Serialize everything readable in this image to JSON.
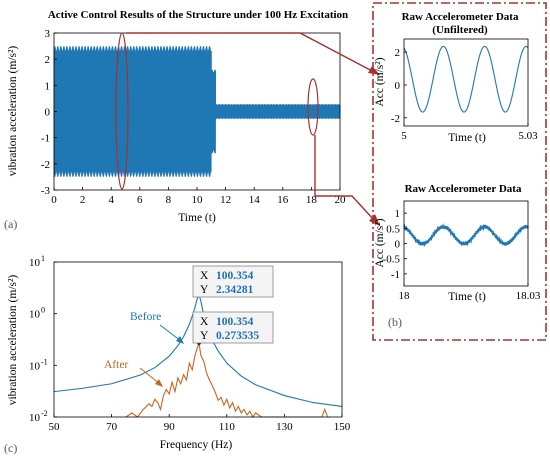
{
  "colors": {
    "before": "#1f77b4",
    "after": "#c8661f",
    "callout": "#a8322a",
    "datatip_border": "#888888"
  },
  "panel_labels": {
    "a": "(a)",
    "b": "(b)",
    "c": "(c)"
  },
  "chart_data": [
    {
      "id": "a",
      "type": "line",
      "title": "Active Control Results of the Structure under 100 Hz Excitation",
      "xlabel": "Time (t)",
      "ylabel": "vibration acceleration (m/s²)",
      "xlim": [
        0,
        20
      ],
      "ylim": [
        -3,
        3
      ],
      "xticks": [
        "0",
        "2",
        "4",
        "6",
        "8",
        "10",
        "12",
        "14",
        "16",
        "18",
        "20"
      ],
      "yticks": [
        "3",
        "2",
        "1",
        "0",
        "-1",
        "-2",
        "-3"
      ],
      "series": [
        {
          "segments": [
            {
              "t_start": 0,
              "t_end": 11,
              "amplitude": 2.5
            },
            {
              "t_start": 11,
              "t_end": 11.3,
              "amplitude": 1.6
            },
            {
              "t_start": 11.3,
              "t_end": 20,
              "amplitude": 0.28
            }
          ]
        }
      ],
      "grid": false
    },
    {
      "id": "b1",
      "type": "line",
      "title": "Raw Accelerometer Data",
      "subtitle": "(Unfiltered)",
      "xlabel": "Time (t)",
      "ylabel": "Acc (m/s²)",
      "xlim": [
        5,
        5.03
      ],
      "ylim": [
        -2.5,
        2.8
      ],
      "xticks": [
        "5",
        "5.03"
      ],
      "yticks": [
        "2",
        "0",
        "-2"
      ],
      "frequency_hz": 100,
      "amplitude": 2.0,
      "offset": 0.35,
      "grid": false
    },
    {
      "id": "b2",
      "type": "line",
      "title": "Raw Accelerometer Data",
      "xlabel": "Time (t)",
      "ylabel": "Acc (m/s²)",
      "xlim": [
        18,
        18.03
      ],
      "ylim": [
        -1.4,
        1.4
      ],
      "xticks": [
        "18",
        "18.03"
      ],
      "yticks": [
        "1",
        "0.5",
        "0",
        "-0.5",
        "-1"
      ],
      "frequency_hz": 100,
      "amplitude": 0.28,
      "offset": 0.27,
      "grid": false
    },
    {
      "id": "c",
      "type": "line",
      "xlabel": "Frequency (Hz)",
      "ylabel": "vibration acceleration (m/s²)",
      "xlim": [
        50,
        150
      ],
      "ylim": [
        0.01,
        10
      ],
      "yscale": "log",
      "xticks": [
        "50",
        "70",
        "90",
        "110",
        "130",
        "150"
      ],
      "yticks": [
        "10",
        "10",
        "10",
        "10"
      ],
      "yticks_exp": [
        "1",
        "0",
        "-1",
        "-2"
      ],
      "series": [
        {
          "name": "Before",
          "x": [
            50,
            60,
            70,
            80,
            85,
            90,
            93,
            95,
            97,
            98,
            99,
            99.6,
            100.354,
            101,
            102,
            103,
            105,
            107,
            110,
            115,
            120,
            130,
            140,
            150
          ],
          "y": [
            0.031,
            0.036,
            0.044,
            0.065,
            0.09,
            0.15,
            0.24,
            0.36,
            0.62,
            0.9,
            1.35,
            1.85,
            2.34281,
            1.75,
            0.95,
            0.6,
            0.3,
            0.19,
            0.11,
            0.062,
            0.042,
            0.026,
            0.019,
            0.016
          ]
        },
        {
          "name": "After",
          "x": [
            75,
            77,
            79,
            81,
            83,
            84,
            85,
            86,
            87,
            88,
            89,
            90,
            91,
            92,
            93,
            94,
            95,
            96,
            97,
            98,
            99,
            100.354,
            101,
            102,
            103,
            104,
            105,
            106,
            107,
            108,
            109,
            110,
            111,
            112,
            113,
            114,
            115,
            116,
            117,
            118,
            119,
            120,
            121,
            122,
            143,
            144,
            145,
            146
          ],
          "y": [
            0.01,
            0.012,
            0.01,
            0.014,
            0.018,
            0.016,
            0.022,
            0.019,
            0.014,
            0.026,
            0.034,
            0.028,
            0.047,
            0.031,
            0.057,
            0.044,
            0.066,
            0.052,
            0.11,
            0.082,
            0.16,
            0.273535,
            0.155,
            0.12,
            0.07,
            0.052,
            0.04,
            0.03,
            0.021,
            0.024,
            0.017,
            0.022,
            0.015,
            0.019,
            0.013,
            0.016,
            0.012,
            0.014,
            0.011,
            0.013,
            0.01,
            0.012,
            0.011,
            0.01,
            0.01,
            0.014,
            0.01,
            0.01
          ]
        }
      ],
      "annotations": [
        {
          "series": "Before",
          "x_key": "X",
          "x": "100.354",
          "y_key": "Y",
          "y": "2.34281"
        },
        {
          "series": "After",
          "x_key": "X",
          "x": "100.354",
          "y_key": "Y",
          "y": "0.273535"
        }
      ],
      "grid": false
    }
  ]
}
